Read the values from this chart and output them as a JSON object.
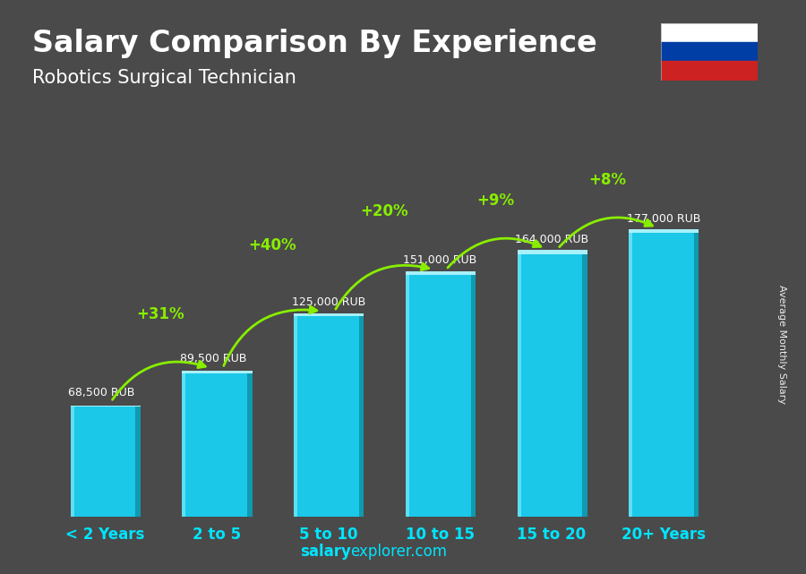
{
  "title": "Salary Comparison By Experience",
  "subtitle": "Robotics Surgical Technician",
  "categories": [
    "< 2 Years",
    "2 to 5",
    "5 to 10",
    "10 to 15",
    "15 to 20",
    "20+ Years"
  ],
  "values": [
    68500,
    89500,
    125000,
    151000,
    164000,
    177000
  ],
  "labels": [
    "68,500 RUB",
    "89,500 RUB",
    "125,000 RUB",
    "151,000 RUB",
    "164,000 RUB",
    "177,000 RUB"
  ],
  "pct_changes": [
    "+31%",
    "+40%",
    "+20%",
    "+9%",
    "+8%"
  ],
  "bar_color_main": "#1bc8e8",
  "bar_color_left": "#5ddff5",
  "bar_color_right": "#0e9ab0",
  "bar_color_top": "#a8f0fa",
  "pct_color": "#88ee00",
  "label_color": "#ffffff",
  "title_color": "#ffffff",
  "subtitle_color": "#ffffff",
  "xtick_color": "#00e5ff",
  "bg_color": "#4a4a4a",
  "watermark_color": "#00e5ff",
  "side_label": "Average Monthly Salary",
  "watermark": "salaryexplorer.com",
  "fig_width": 9.0,
  "fig_height": 6.41,
  "bar_width": 0.55,
  "ylim_max": 215000,
  "flag_colors": [
    "#ffffff",
    "#003DA5",
    "#CC2222"
  ]
}
